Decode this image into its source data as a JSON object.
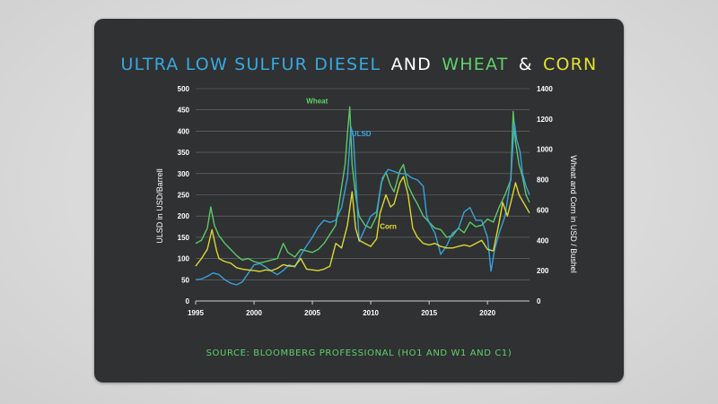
{
  "title": {
    "part1": "ULTRA LOW SULFUR DIESEL",
    "part2": "AND",
    "part3": "WHEAT",
    "part4": "&",
    "part5": "CORN"
  },
  "source": "SOURCE: BLOOMBERG PROFESSIONAL  (HO1 AND W1 AND C1)",
  "colors": {
    "background": "#2f3133",
    "ulsd": "#3aa8e0",
    "wheat": "#5fd16a",
    "corn": "#e5e032",
    "text": "#ffffff",
    "grid": "#8a8c8e"
  },
  "chart_data": {
    "type": "line",
    "ylabel": "ULSD in USD/Barrell",
    "y2label": "Wheat and Corn in USD / Bushel",
    "ylim": [
      0,
      500
    ],
    "y2lim": [
      0,
      1400
    ],
    "xlim": [
      1995,
      2023.6
    ],
    "x_ticks": [
      "1995",
      "2000",
      "2005",
      "2010",
      "2015",
      "2020"
    ],
    "y_ticks": [
      "0",
      "50",
      "100",
      "150",
      "200",
      "250",
      "300",
      "350",
      "400",
      "450",
      "500"
    ],
    "y2_ticks": [
      "0",
      "200",
      "400",
      "600",
      "800",
      "1000",
      "1200",
      "1400"
    ],
    "grid": true,
    "series": [
      {
        "name": "Wheat",
        "axis": "right",
        "x": [
          1995.0,
          1995.5,
          1996.0,
          1996.3,
          1996.6,
          1997.0,
          1997.5,
          1998.0,
          1998.5,
          1999.0,
          1999.5,
          2000.0,
          2000.5,
          2001.0,
          2001.5,
          2002.0,
          2002.5,
          2002.9,
          2003.5,
          2004.0,
          2004.5,
          2005.0,
          2005.5,
          2006.0,
          2006.5,
          2007.0,
          2007.4,
          2007.8,
          2008.0,
          2008.2,
          2008.4,
          2008.7,
          2009.0,
          2009.5,
          2010.0,
          2010.5,
          2010.9,
          2011.3,
          2011.7,
          2012.0,
          2012.5,
          2012.8,
          2013.2,
          2013.7,
          2014.0,
          2014.5,
          2015.0,
          2015.5,
          2016.0,
          2016.5,
          2017.0,
          2017.5,
          2018.0,
          2018.5,
          2019.0,
          2019.5,
          2020.0,
          2020.5,
          2021.0,
          2021.5,
          2022.0,
          2022.2,
          2022.4,
          2022.7,
          2023.0,
          2023.3,
          2023.6
        ],
        "values": [
          380,
          400,
          480,
          620,
          500,
          430,
          380,
          340,
          300,
          270,
          280,
          260,
          250,
          260,
          270,
          280,
          380,
          320,
          290,
          340,
          330,
          320,
          340,
          380,
          440,
          500,
          700,
          900,
          1100,
          1280,
          900,
          700,
          560,
          500,
          480,
          560,
          780,
          850,
          760,
          720,
          860,
          900,
          760,
          680,
          640,
          560,
          520,
          480,
          470,
          420,
          430,
          480,
          450,
          520,
          490,
          500,
          540,
          520,
          620,
          700,
          800,
          1250,
          1050,
          900,
          820,
          700,
          650
        ]
      },
      {
        "name": "ULSD",
        "axis": "left",
        "x": [
          1995.0,
          1995.5,
          1996.0,
          1996.5,
          1997.0,
          1997.5,
          1998.0,
          1998.5,
          1999.0,
          1999.5,
          2000.0,
          2000.5,
          2001.0,
          2001.5,
          2002.0,
          2002.5,
          2003.0,
          2003.5,
          2004.0,
          2004.5,
          2005.0,
          2005.5,
          2006.0,
          2006.5,
          2007.0,
          2007.5,
          2008.0,
          2008.3,
          2008.5,
          2008.8,
          2009.0,
          2009.5,
          2010.0,
          2010.5,
          2011.0,
          2011.5,
          2012.0,
          2012.5,
          2013.0,
          2013.5,
          2014.0,
          2014.5,
          2014.8,
          2015.0,
          2015.5,
          2016.0,
          2016.5,
          2017.0,
          2017.5,
          2018.0,
          2018.5,
          2019.0,
          2019.5,
          2020.0,
          2020.3,
          2020.6,
          2021.0,
          2021.5,
          2022.0,
          2022.3,
          2022.5,
          2022.8,
          2023.0,
          2023.3,
          2023.6
        ],
        "values": [
          50,
          52,
          58,
          66,
          62,
          50,
          42,
          38,
          45,
          65,
          85,
          88,
          80,
          70,
          62,
          72,
          85,
          80,
          108,
          130,
          150,
          175,
          190,
          185,
          190,
          220,
          290,
          410,
          390,
          250,
          140,
          170,
          200,
          210,
          290,
          310,
          305,
          300,
          300,
          290,
          285,
          270,
          200,
          185,
          160,
          110,
          130,
          160,
          170,
          210,
          220,
          190,
          190,
          150,
          70,
          120,
          160,
          200,
          290,
          420,
          380,
          350,
          300,
          270,
          250
        ]
      },
      {
        "name": "Corn",
        "axis": "right",
        "x": [
          1995.0,
          1995.5,
          1996.0,
          1996.4,
          1996.8,
          1997.0,
          1997.5,
          1998.0,
          1998.5,
          1999.0,
          1999.5,
          2000.0,
          2000.5,
          2001.0,
          2001.5,
          2002.0,
          2002.5,
          2003.0,
          2003.5,
          2004.0,
          2004.5,
          2005.0,
          2005.5,
          2006.0,
          2006.5,
          2007.0,
          2007.5,
          2008.0,
          2008.4,
          2008.7,
          2009.0,
          2009.5,
          2010.0,
          2010.5,
          2010.8,
          2011.3,
          2011.7,
          2012.0,
          2012.5,
          2012.8,
          2013.2,
          2013.6,
          2014.0,
          2014.5,
          2015.0,
          2015.5,
          2016.0,
          2016.5,
          2017.0,
          2017.5,
          2018.0,
          2018.5,
          2019.0,
          2019.5,
          2020.0,
          2020.5,
          2021.0,
          2021.3,
          2021.7,
          2022.0,
          2022.4,
          2022.7,
          2023.0,
          2023.3,
          2023.6
        ],
        "values": [
          230,
          280,
          340,
          470,
          330,
          280,
          260,
          250,
          220,
          210,
          205,
          200,
          195,
          205,
          200,
          215,
          240,
          230,
          230,
          280,
          210,
          205,
          200,
          210,
          230,
          380,
          350,
          500,
          720,
          480,
          400,
          380,
          360,
          410,
          580,
          700,
          620,
          640,
          780,
          820,
          700,
          480,
          420,
          380,
          370,
          380,
          360,
          350,
          350,
          360,
          370,
          360,
          380,
          400,
          340,
          330,
          520,
          650,
          560,
          650,
          780,
          700,
          660,
          620,
          580
        ]
      }
    ],
    "annotations": [
      {
        "text": "Wheat",
        "x": 2005.4,
        "y": 465,
        "axis": "left",
        "color": "wheat"
      },
      {
        "text": "ULSD",
        "x": 2009.2,
        "y": 388,
        "axis": "left",
        "color": "ulsd"
      },
      {
        "text": "Corn",
        "x": 2011.5,
        "y": 170,
        "axis": "left",
        "color": "corn"
      }
    ]
  }
}
